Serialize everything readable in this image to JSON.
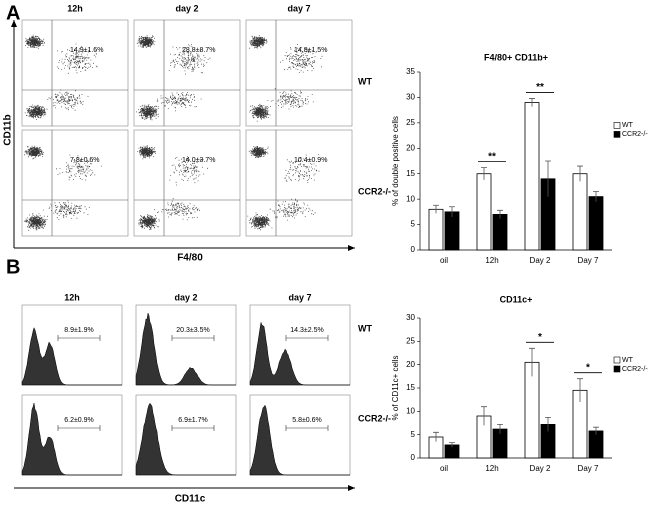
{
  "figure": {
    "panel_a": {
      "label": "A",
      "columns": [
        "12h",
        "day 2",
        "day 7"
      ],
      "rows": [
        "WT",
        "CCR2-/-"
      ],
      "y_axis_label": "CD11b",
      "x_axis_label": "F4/80",
      "percentages": [
        "14.9±1.6%",
        "28.8±8.7%",
        "14.8±1.5%",
        "7.8±0.6%",
        "14.0±3.7%",
        "10.4±0.9%"
      ]
    },
    "panel_b": {
      "label": "B",
      "columns": [
        "12h",
        "day 2",
        "day 7"
      ],
      "rows": [
        "WT",
        "CCR2-/-"
      ],
      "x_axis_label": "CD11c",
      "percentages": [
        "8.9±1.9%",
        "20.3±3.5%",
        "14.3±2.5%",
        "6.2±0.9%",
        "6.9±1.7%",
        "5.8±0.6%"
      ]
    }
  },
  "chart_data": [
    {
      "type": "bar",
      "title": "F4/80+ CD11b+",
      "y_label": "% of double positive cells",
      "categories": [
        "oil",
        "12h",
        "Day 2",
        "Day 7"
      ],
      "series": [
        {
          "name": "WT",
          "color": "#ffffff",
          "values": [
            8,
            15,
            29,
            15
          ],
          "errors": [
            0.8,
            1.2,
            0.8,
            1.5
          ]
        },
        {
          "name": "CCR2-/-",
          "color": "#000000",
          "values": [
            7.5,
            7,
            14,
            10.5
          ],
          "errors": [
            1,
            0.8,
            3.5,
            1
          ]
        }
      ],
      "ylim": [
        0,
        35
      ],
      "yticks": [
        0,
        5,
        10,
        15,
        20,
        25,
        30,
        35
      ],
      "legend": "right",
      "annotations": [
        {
          "text": "**",
          "category": "12h"
        },
        {
          "text": "**",
          "category": "Day 2"
        }
      ]
    },
    {
      "type": "bar",
      "title": "CD11c+",
      "y_label": "% of CD11c+ cells",
      "categories": [
        "oil",
        "12h",
        "Day 2",
        "Day 7"
      ],
      "series": [
        {
          "name": "WT",
          "color": "#ffffff",
          "values": [
            4.5,
            9,
            20.5,
            14.5
          ],
          "errors": [
            1,
            2,
            3,
            2.5
          ]
        },
        {
          "name": "CCR2-/-",
          "color": "#000000",
          "values": [
            2.8,
            6.2,
            7.2,
            5.8
          ],
          "errors": [
            0.5,
            1,
            1.5,
            0.8
          ]
        }
      ],
      "ylim": [
        0,
        30
      ],
      "yticks": [
        0,
        5,
        10,
        15,
        20,
        25,
        30
      ],
      "legend": "right",
      "annotations": [
        {
          "text": "*",
          "category": "Day 2"
        },
        {
          "text": "*",
          "category": "Day 7"
        }
      ]
    }
  ]
}
